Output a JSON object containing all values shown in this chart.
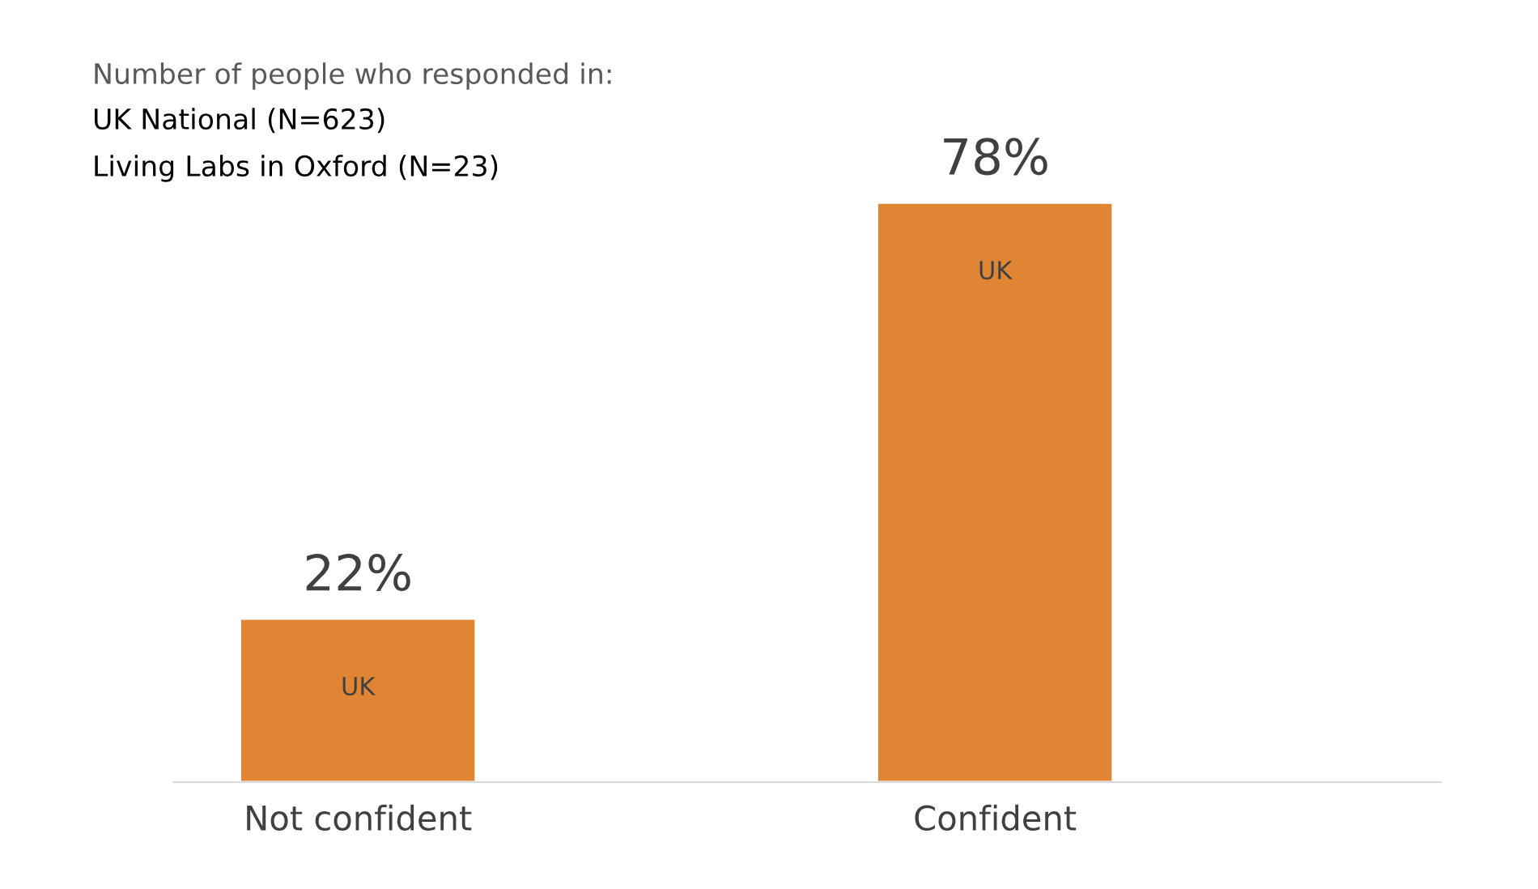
{
  "chart_data": {
    "type": "bar",
    "categories": [
      "Not confident",
      "Confident"
    ],
    "series": [
      {
        "name": "UK",
        "color": "#e08534",
        "values": [
          22,
          78
        ],
        "value_labels": [
          "22%",
          "78%"
        ]
      }
    ],
    "annotations": [
      "Number of people who responded in:",
      "UK National (N=623)",
      "Living Labs in Oxford (N=23)"
    ],
    "grid": false,
    "legend": false,
    "tick_labels": "x"
  }
}
